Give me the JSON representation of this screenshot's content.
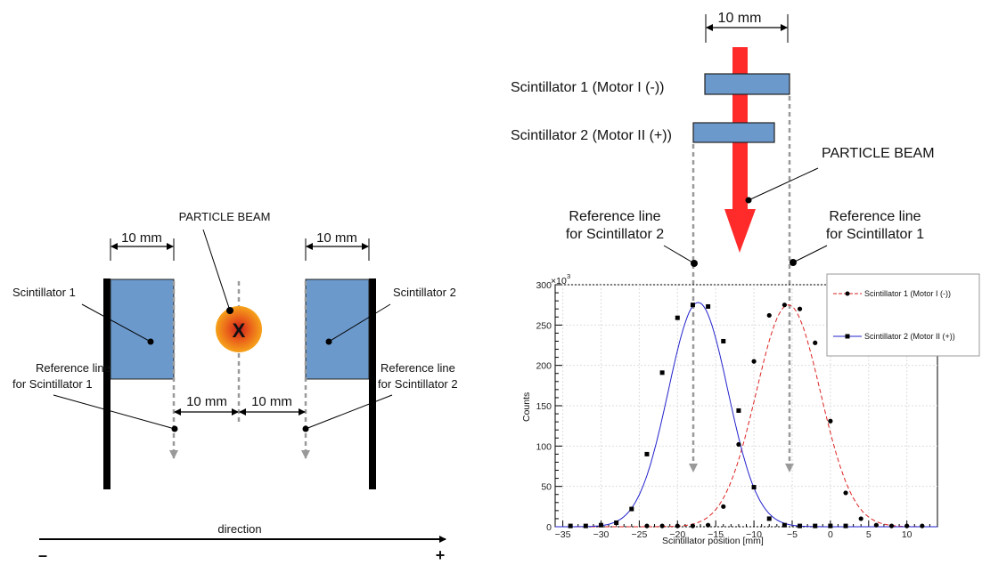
{
  "left": {
    "beam_label": "PARTICLE BEAM",
    "beam_mark": "X",
    "dim_width1": "10 mm",
    "dim_width2": "10 mm",
    "dim_gap1": "10 mm",
    "dim_gap2": "10 mm",
    "scint1_label": "Scintillator 1",
    "scint2_label": "Scintillator 2",
    "ref1_line1": "Reference line",
    "ref1_line2": "for Scintillator 1",
    "ref2_line1": "Reference line",
    "ref2_line2": "for Scintillator 2",
    "direction_label": "direction",
    "minus": "–",
    "plus": "+"
  },
  "right": {
    "dim_top": "10 mm",
    "scint1_label": "Scintillator 1 (Motor I (-))",
    "scint2_label": "Scintillator 2 (Motor II (+))",
    "beam_label": "PARTICLE BEAM",
    "ref2_line1": "Reference line",
    "ref2_line2": "for Scintillator 2",
    "ref1_line1": "Reference line",
    "ref1_line2": "for Scintillator 1"
  },
  "colors": {
    "scintillator": "#6c99cc",
    "beam_arrow": "#ff2a2a",
    "series1": "#dd2222",
    "series2": "#2222cc",
    "ref_line": "#999999"
  },
  "chart_data": {
    "type": "line",
    "xlabel": "Scintillator position [mm]",
    "ylabel": "Counts",
    "y_exponent": "×10",
    "y_exponent_power": "3",
    "xlim": [
      -36,
      14
    ],
    "ylim": [
      0,
      300
    ],
    "x_ticks": [
      -35,
      -30,
      -25,
      -20,
      -15,
      -10,
      -5,
      0,
      5,
      10
    ],
    "y_ticks": [
      0,
      50,
      100,
      150,
      200,
      250,
      300
    ],
    "grid": true,
    "legend_position": "top-right",
    "series": [
      {
        "name": "Scintillator 1 (Motor I (-))",
        "color": "#dd2222",
        "style": "dashed",
        "marker": "circle",
        "fit": {
          "amplitude": 275,
          "mean": -5.5,
          "sigma": 4.2
        },
        "points": [
          [
            -24,
            1
          ],
          [
            -22,
            1
          ],
          [
            -20,
            1
          ],
          [
            -18,
            1
          ],
          [
            -16,
            2
          ],
          [
            -14,
            25
          ],
          [
            -12,
            102
          ],
          [
            -10,
            205
          ],
          [
            -8,
            262
          ],
          [
            -6,
            275
          ],
          [
            -4,
            270
          ],
          [
            -2,
            228
          ],
          [
            0,
            131
          ],
          [
            2,
            42
          ],
          [
            4,
            10
          ],
          [
            6,
            2
          ],
          [
            8,
            1
          ],
          [
            10,
            1
          ],
          [
            12,
            1
          ]
        ]
      },
      {
        "name": "Scintillator 2 (Motor II (+))",
        "color": "#2222cc",
        "style": "solid",
        "marker": "square",
        "fit": {
          "amplitude": 278,
          "mean": -17.3,
          "sigma": 3.9
        },
        "points": [
          [
            -34,
            1
          ],
          [
            -32,
            1
          ],
          [
            -30,
            2
          ],
          [
            -28,
            5
          ],
          [
            -26,
            22
          ],
          [
            -24,
            90
          ],
          [
            -22,
            191
          ],
          [
            -20,
            259
          ],
          [
            -18,
            275
          ],
          [
            -16,
            273
          ],
          [
            -14,
            230
          ],
          [
            -12,
            144
          ],
          [
            -10,
            49
          ],
          [
            -8,
            10
          ],
          [
            -6,
            2
          ],
          [
            -4,
            1
          ],
          [
            -2,
            1
          ],
          [
            0,
            1
          ],
          [
            2,
            1
          ]
        ]
      }
    ]
  }
}
